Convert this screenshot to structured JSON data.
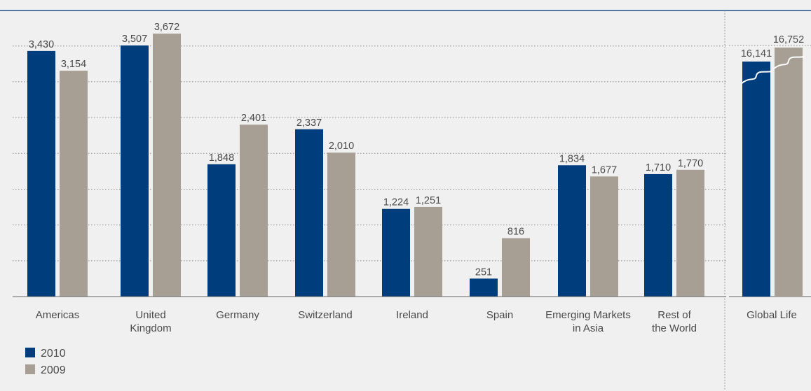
{
  "chart_data": {
    "type": "bar",
    "title": "",
    "xlabel": "",
    "ylabel": "",
    "ylim": [
      0,
      3800
    ],
    "grid": true,
    "legend": "bottom-left",
    "colors": {
      "2010": "#003d7d",
      "2009": "#a79e94",
      "background": "#f0f0f0",
      "grid": "#8a8a8a",
      "top_rule": "#1d4f86"
    },
    "categories": [
      [
        "Americas"
      ],
      [
        "United",
        "Kingdom"
      ],
      [
        "Germany"
      ],
      [
        "Switzerland"
      ],
      [
        "Ireland"
      ],
      [
        "Spain"
      ],
      [
        "Emerging Markets",
        "in Asia"
      ],
      [
        "Rest of",
        "the World"
      ]
    ],
    "series": [
      {
        "name": "2010",
        "values": [
          3430,
          3507,
          1848,
          2337,
          1224,
          251,
          1834,
          1710
        ]
      },
      {
        "name": "2009",
        "values": [
          3154,
          3672,
          2401,
          2010,
          1251,
          816,
          1677,
          1770
        ]
      }
    ],
    "value_labels": {
      "2010": [
        "3,430",
        "3,507",
        "1,848",
        "2,337",
        "1,224",
        "251",
        "1,834",
        "1,710"
      ],
      "2009": [
        "3,154",
        "3,672",
        "2,401",
        "2,010",
        "1,251",
        "816",
        "1,677",
        "1,770"
      ]
    },
    "total": {
      "category": "Global Life",
      "axis_break": true,
      "values": {
        "2010": 16141,
        "2009": 16752
      },
      "value_labels": {
        "2010": "16,141",
        "2009": "16,752"
      }
    }
  }
}
